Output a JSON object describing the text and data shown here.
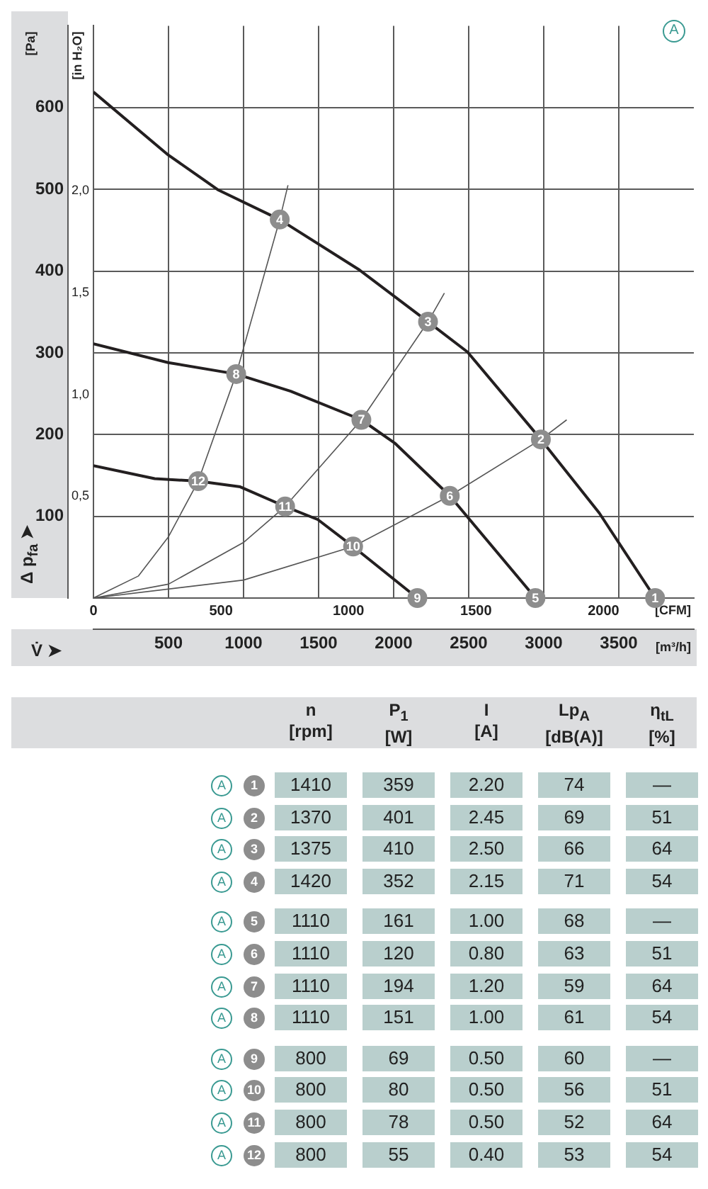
{
  "chart_data": [
    {
      "type": "line",
      "ylabel": "[Pa]",
      "y2label": "[in H₂O]",
      "xlabel": "[m³/h]",
      "x2label": "[CFM]",
      "xlim": [
        0,
        4000
      ],
      "xticks": [
        500,
        1000,
        1500,
        2000,
        2500,
        3000,
        3500
      ],
      "x2lim": [
        0,
        2354
      ],
      "x2ticks": [
        0,
        500,
        1000,
        1500,
        2000
      ],
      "ylim": [
        0,
        700
      ],
      "yticks": [
        100,
        200,
        300,
        400,
        500,
        600
      ],
      "y2lim": [
        0,
        2.81
      ],
      "y2ticks": [
        {
          "value": 0.5,
          "label": "0,5"
        },
        {
          "value": 1,
          "label": "1,0"
        },
        {
          "value": 1.5,
          "label": "1,5"
        },
        {
          "value": 2,
          "label": "2,0"
        }
      ],
      "grid": true,
      "series": [
        {
          "color": "#231f20",
          "x": [
            0,
            498,
            833,
            1241,
            1767,
            2229,
            2492,
            2981,
            3370,
            3742
          ],
          "values": [
            619,
            542,
            499,
            463,
            402,
            338,
            301,
            194,
            104,
            0
          ]
        },
        {
          "color": "#231f20",
          "x": [
            0,
            498,
            951,
            1314,
            1785,
            2011,
            2374,
            2945
          ],
          "values": [
            311,
            288,
            274,
            253,
            218,
            189,
            125,
            0
          ]
        },
        {
          "color": "#231f20",
          "x": [
            0,
            408,
            698,
            978,
            1277,
            1495,
            1730,
            2158
          ],
          "values": [
            162,
            146,
            143,
            136,
            112,
            96,
            63,
            0
          ]
        },
        {
          "color": "#555555",
          "x": [
            0,
            300,
            500,
            698,
            951,
            1241,
            1296
          ],
          "values": [
            0,
            27,
            75,
            143,
            274,
            463,
            505
          ]
        },
        {
          "color": "#555555",
          "x": [
            0,
            500,
            1000,
            1277,
            1785,
            2229,
            2338
          ],
          "values": [
            0,
            17,
            68,
            112,
            218,
            338,
            373
          ]
        },
        {
          "color": "#555555",
          "x": [
            0,
            1000,
            1730,
            2374,
            2981,
            3153
          ],
          "values": [
            0,
            22,
            63,
            125,
            194,
            218
          ]
        }
      ],
      "annotations": [
        "V̇ ➤",
        "Δ p$_{fa}$ ➤",
        "A",
        {
          "text": "1",
          "x": 3742,
          "y": 0
        },
        {
          "text": "2",
          "x": 2981,
          "y": 194
        },
        {
          "text": "3",
          "x": 2229,
          "y": 338
        },
        {
          "text": "4",
          "x": 1241,
          "y": 463
        },
        {
          "text": "5",
          "x": 2945,
          "y": 0
        },
        {
          "text": "6",
          "x": 2374,
          "y": 125
        },
        {
          "text": "7",
          "x": 1785,
          "y": 218
        },
        {
          "text": "8",
          "x": 951,
          "y": 274
        },
        {
          "text": "9",
          "x": 2158,
          "y": 0
        },
        {
          "text": "10",
          "x": 1730,
          "y": 63
        },
        {
          "text": "11",
          "x": 1277,
          "y": 112
        },
        {
          "text": "12",
          "x": 698,
          "y": 143
        }
      ]
    },
    {
      "type": "heatmap",
      "color": "#b9cfcd",
      "categories": [
        "n [rpm]",
        "P$_{1}$ [W]",
        "I [A]",
        "Lp$_{A}$ [dB(A)]",
        "η$_{tL}$ [%]"
      ],
      "y_categories": [
        "1",
        "2",
        "3",
        "4",
        "5",
        "6",
        "7",
        "8",
        "9",
        "10",
        "11",
        "12"
      ],
      "annotations": [
        "A",
        "A",
        "A",
        "A",
        "A",
        "A",
        "A",
        "A",
        "A",
        "A",
        "A",
        "A"
      ],
      "cells": [
        [
          null,
          null,
          null,
          null,
          null
        ],
        [
          null,
          null,
          null,
          null,
          null
        ],
        [
          null,
          null,
          null,
          null,
          null
        ],
        [
          null,
          null,
          null,
          null,
          null
        ],
        [
          null,
          null,
          null,
          null,
          null
        ],
        [
          null,
          null,
          null,
          null,
          null
        ],
        [
          null,
          null,
          null,
          null,
          null
        ],
        [
          null,
          null,
          null,
          null,
          null
        ],
        [
          null,
          null,
          null,
          null,
          null
        ],
        [
          null,
          null,
          null,
          null,
          null
        ],
        [
          null,
          null,
          null,
          null,
          null
        ],
        [
          null,
          null,
          null,
          null,
          null
        ]
      ],
      "cell_labels": [
        [
          "1410",
          "359",
          "2.20",
          "74",
          "—"
        ],
        [
          "1370",
          "401",
          "2.45",
          "69",
          "51"
        ],
        [
          "1375",
          "410",
          "2.50",
          "66",
          "64"
        ],
        [
          "1420",
          "352",
          "2.15",
          "71",
          "54"
        ],
        [
          "1110",
          "161",
          "1.00",
          "68",
          "—"
        ],
        [
          "1110",
          "120",
          "0.80",
          "63",
          "51"
        ],
        [
          "1110",
          "194",
          "1.20",
          "59",
          "64"
        ],
        [
          "1110",
          "151",
          "1.00",
          "61",
          "54"
        ],
        [
          "800",
          "69",
          "0.50",
          "60",
          "—"
        ],
        [
          "800",
          "80",
          "0.50",
          "56",
          "51"
        ],
        [
          "800",
          "78",
          "0.50",
          "52",
          "64"
        ],
        [
          "800",
          "55",
          "0.40",
          "53",
          "54"
        ]
      ]
    }
  ]
}
